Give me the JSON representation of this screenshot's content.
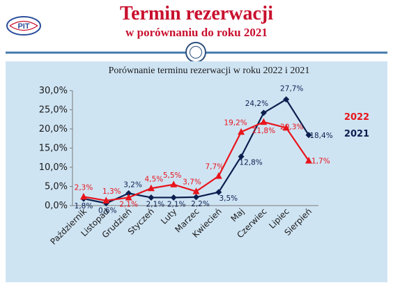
{
  "header": {
    "title": "Termin rezerwacji",
    "subtitle": "w porównaniu do roku 2021",
    "logo_text": "PIT"
  },
  "chart_data": {
    "type": "line",
    "title": "Porównanie terminu rezerwacji w roku 2022 i 2021",
    "categories": [
      "Październik",
      "Listopad",
      "Grudzień",
      "Styczeń",
      "Luty",
      "Marzec",
      "Kwiecień",
      "Maj",
      "Czerwiec",
      "Lipiec",
      "Sierpień"
    ],
    "ylim": [
      0,
      30
    ],
    "yticks": [
      0,
      5,
      10,
      15,
      20,
      25,
      30
    ],
    "ytick_labels": [
      "0,0%",
      "5,0%",
      "10,0%",
      "15,0%",
      "20,0%",
      "25,0%",
      "30,0%"
    ],
    "grid": false,
    "legend_position": "right",
    "series": [
      {
        "name": "2022",
        "color": "#e8141b",
        "marker": "triangle",
        "values": [
          2.3,
          1.3,
          2.1,
          4.5,
          5.5,
          3.7,
          7.7,
          19.2,
          21.8,
          20.3,
          11.7
        ],
        "labels": [
          "2,3%",
          "1,3%",
          "2,1%",
          "4,5%",
          "5,5%",
          "3,7%",
          "7,7%",
          "19,2%",
          "21,8%",
          "20,3%",
          "11,7%"
        ]
      },
      {
        "name": "2021",
        "color": "#0b1f4f",
        "marker": "circle",
        "values": [
          1.8,
          0.6,
          3.2,
          2.1,
          2.1,
          2.2,
          3.5,
          12.8,
          24.2,
          27.7,
          18.4
        ],
        "labels": [
          "1,8%",
          "0,6%",
          "3,2%",
          "2,1%",
          "2,1%",
          "2,2%",
          "3,5%",
          "12,8%",
          "24,2%",
          "27,7%",
          "18,4%"
        ]
      }
    ]
  }
}
